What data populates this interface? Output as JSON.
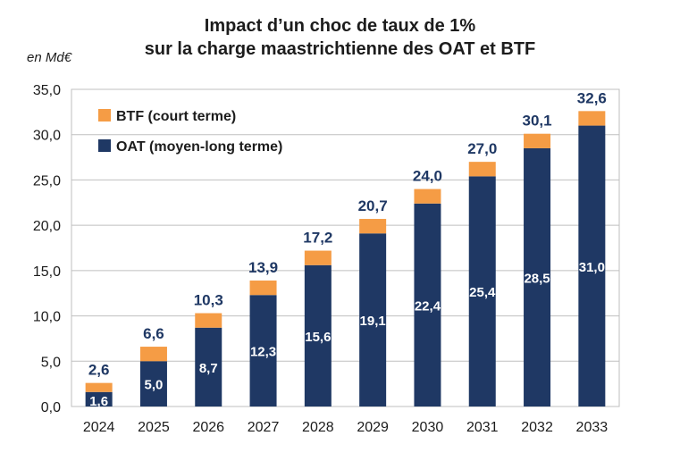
{
  "chart_data": {
    "type": "bar",
    "stacked": true,
    "title_line1": "Impact d’un choc de taux de 1%",
    "title_line2": "sur la charge maastrichtienne des OAT et BTF",
    "unit_label": "en Md€",
    "categories": [
      "2024",
      "2025",
      "2026",
      "2027",
      "2028",
      "2029",
      "2030",
      "2031",
      "2032",
      "2033"
    ],
    "series": [
      {
        "name": "OAT (moyen-long terme)",
        "color": "#1f3864",
        "values": [
          1.6,
          5.0,
          8.7,
          12.3,
          15.6,
          19.1,
          22.4,
          25.4,
          28.5,
          31.0
        ],
        "labels": [
          "1,6",
          "5,0",
          "8,7",
          "12,3",
          "15,6",
          "19,1",
          "22,4",
          "25,4",
          "28,5",
          "31,0"
        ]
      },
      {
        "name": "BTF (court terme)",
        "color": "#f59c45",
        "values": [
          1.0,
          1.6,
          1.6,
          1.6,
          1.6,
          1.6,
          1.6,
          1.6,
          1.6,
          1.6
        ]
      }
    ],
    "totals": [
      2.6,
      6.6,
      10.3,
      13.9,
      17.2,
      20.7,
      24.0,
      27.0,
      30.1,
      32.6
    ],
    "total_labels": [
      "2,6",
      "6,6",
      "10,3",
      "13,9",
      "17,2",
      "20,7",
      "24,0",
      "27,0",
      "30,1",
      "32,6"
    ],
    "ylim": [
      0,
      35
    ],
    "yticks": [
      "0,0",
      "5,0",
      "10,0",
      "15,0",
      "20,0",
      "25,0",
      "30,0",
      "35,0"
    ],
    "grid": true,
    "legend_position": "top-left"
  }
}
